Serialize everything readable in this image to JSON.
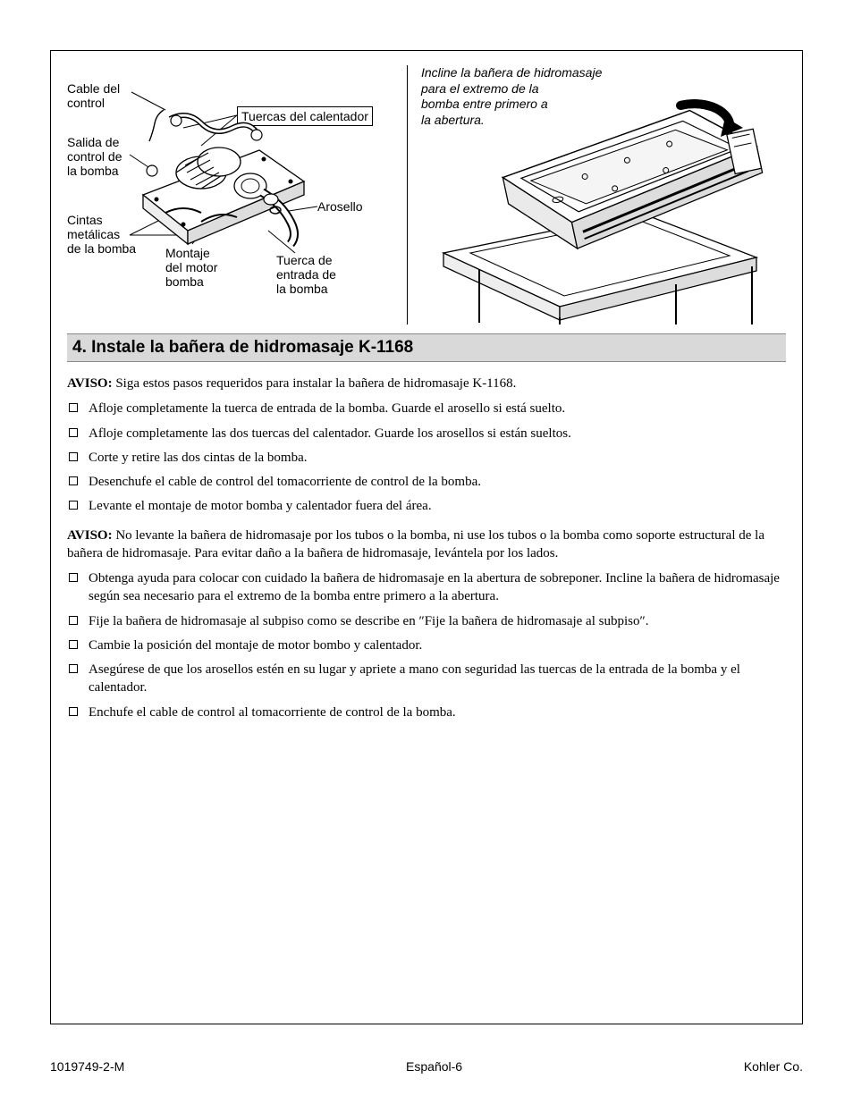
{
  "figure_left": {
    "labels": {
      "control_cable": "Cable del\ncontrol",
      "heater_nuts": "Tuercas del calentador",
      "pump_control_outlet": "Salida de\ncontrol de\nla bomba",
      "oring": "Arosello",
      "pump_straps": "Cintas\nmetálicas\nde la bomba",
      "motor_mount": "Montaje\ndel motor\nbomba",
      "pump_inlet_nut": "Tuerca de\nentrada de\nla bomba"
    }
  },
  "figure_right": {
    "caption": "Incline la bañera de hidromasaje\npara el extremo de la\nbomba entre primero a\nla abertura."
  },
  "section_heading": "4. Instale la bañera de hidromasaje K-1168",
  "notice1_label": "AVISO:",
  "notice1_text": " Siga estos pasos requeridos para instalar la bañera de hidromasaje K-1168.",
  "list1": [
    "Afloje completamente la tuerca de entrada de la bomba. Guarde el arosello si está suelto.",
    "Afloje completamente las dos tuercas del calentador. Guarde los arosellos si están sueltos.",
    "Corte y retire las dos cintas de la bomba.",
    "Desenchufe el cable de control del tomacorriente de control de la bomba.",
    "Levante el montaje de motor bomba y calentador fuera del área."
  ],
  "notice2_label": "AVISO:",
  "notice2_text": " No levante la bañera de hidromasaje por los tubos o la bomba, ni use los tubos o la bomba como soporte estructural de la bañera de hidromasaje. Para evitar daño a la bañera de hidromasaje, levántela por los lados.",
  "list2": [
    "Obtenga ayuda para colocar con cuidado la bañera de hidromasaje en la abertura de sobreponer. Incline la bañera de hidromasaje según sea necesario para el extremo de la bomba entre primero a la abertura.",
    "Fije la bañera de hidromasaje al subpiso como se describe en ″Fije la bañera de hidromasaje al subpiso″.",
    "Cambie la posición del montaje de motor bombo y calentador.",
    "Asegúrese de que los arosellos estén en su lugar y apriete a mano con seguridad las tuercas de la entrada de la bomba y el calentador.",
    "Enchufe el cable de control al tomacorriente de control de la bomba."
  ],
  "footer": {
    "left": "1019749-2-M",
    "center": "Español-6",
    "right": "Kohler Co."
  }
}
